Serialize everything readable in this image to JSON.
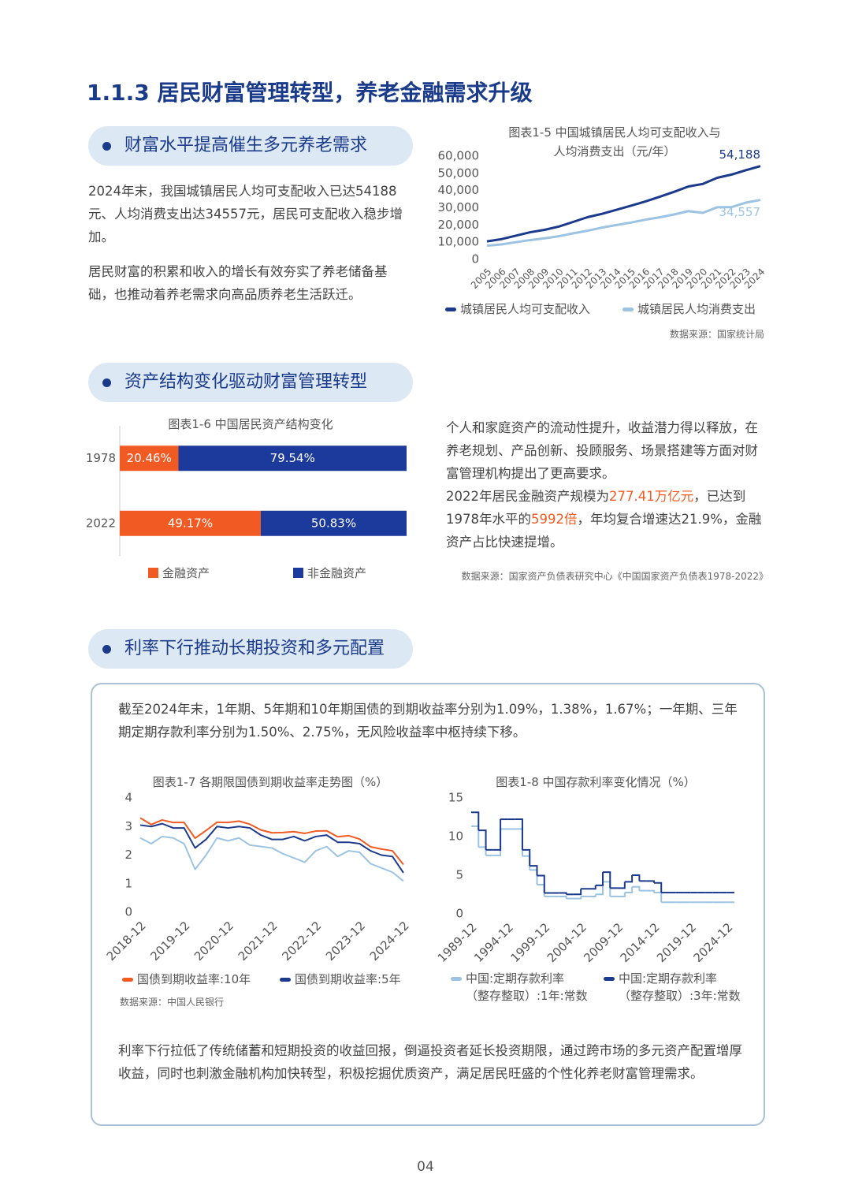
{
  "heading": "1.1.3 居民财富管理转型，养老金融需求升级",
  "sections": [
    {
      "title": "财富水平提高催生多元养老需求",
      "paragraphs": [
        "2024年末，我国城镇居民人均可支配收入已达54188元、人均消费支出达34557元，居民可支配收入稳步增加。",
        "居民财富的积累和收入的增长有效夯实了养老储备基础，也推动着养老需求向高品质养老生活跃迁。"
      ]
    },
    {
      "title": "资产结构变化驱动财富管理转型",
      "paragraphs": [
        "个人和家庭资产的流动性提升，收益潜力得以释放，在养老规划、产品创新、投顾服务、场景搭建等方面对财富管理机构提出了更高要求。"
      ],
      "highlight_paragraph": [
        "2022年居民金融资产规模为",
        "277.41万亿元",
        "，已达到1978年水平的",
        "5992倍",
        "，年均复合增速达21.9%，金融资产占比快速提增。"
      ]
    },
    {
      "title": "利率下行推动长期投资和多元配置",
      "paragraphs": [
        "截至2024年末，1年期、5年期和10年期国债的到期收益率分别为1.09%，1.38%，1.67%；一年期、三年期定期存款利率分别为1.50%、2.75%，无风险收益率中枢持续下移。",
        "利率下行拉低了传统储蓄和短期投资的收益回报，倒逼投资者延长投资期限，通过跨市场的多元资产配置增厚收益，同时也刺激金融机构加快转型，积极挖掘优质资产，满足居民旺盛的个性化养老财富管理需求。"
      ]
    }
  ],
  "chart_data": [
    {
      "type": "line",
      "title": "图表1-5 中国城镇居民人均可支配收入与人均消费支出（元/年）",
      "categories": [
        "2005",
        "2006",
        "2007",
        "2008",
        "2009",
        "2010",
        "2011",
        "2012",
        "2013",
        "2014",
        "2015",
        "2016",
        "2017",
        "2018",
        "2019",
        "2020",
        "2021",
        "2022",
        "2023",
        "2024"
      ],
      "series": [
        {
          "name": "城镇居民人均可支配收入",
          "color": "#1b3a8c",
          "values": [
            10493,
            11759,
            13786,
            15781,
            17175,
            19109,
            21810,
            24565,
            26467,
            28844,
            31195,
            33616,
            36396,
            39251,
            42359,
            43834,
            47412,
            49283,
            51821,
            54188
          ],
          "value_labels": [
            null,
            null,
            null,
            null,
            null,
            null,
            null,
            null,
            null,
            null,
            null,
            null,
            null,
            null,
            null,
            null,
            null,
            null,
            null,
            "54,188"
          ]
        },
        {
          "name": "城镇居民人均消费支出",
          "color": "#9cc3e2",
          "values": [
            7943,
            8697,
            9997,
            11243,
            12265,
            13471,
            15161,
            16674,
            18488,
            19968,
            21392,
            23079,
            24445,
            26112,
            28063,
            27007,
            30307,
            30391,
            32994,
            34557
          ],
          "value_labels": [
            null,
            null,
            null,
            null,
            null,
            null,
            null,
            null,
            null,
            null,
            null,
            null,
            null,
            null,
            null,
            null,
            null,
            null,
            null,
            "34,557"
          ]
        }
      ],
      "ylim": [
        0,
        60000
      ],
      "yticks": [
        0,
        {
          "value": 10000,
          "label": "10,000"
        },
        {
          "value": 20000,
          "label": "20,000"
        },
        {
          "value": 30000,
          "label": "30,000"
        },
        {
          "value": 40000,
          "label": "40,000"
        },
        {
          "value": 50000,
          "label": "50,000"
        },
        {
          "value": 60000,
          "label": "60,000"
        }
      ],
      "source": "数据来源：国家统计局"
    },
    {
      "type": "bar",
      "orientation": "horizontal",
      "stacked": true,
      "title": "图表1-6 中国居民资产结构变化",
      "categories": [
        "1978",
        "2022"
      ],
      "series": [
        {
          "name": "金融资产",
          "color": "#f15a22",
          "values": [
            20.46,
            49.17
          ],
          "value_labels": [
            "20.46%",
            "49.17%"
          ]
        },
        {
          "name": "非金融资产",
          "color": "#1b3a9c",
          "values": [
            79.54,
            50.83
          ],
          "value_labels": [
            "79.54%",
            "50.83%"
          ]
        }
      ],
      "xlim": [
        0,
        100
      ],
      "source": "数据来源：国家资产负债表研究中心《中国国家资产负债表1978-2022》"
    },
    {
      "type": "line",
      "title": "图表1-7 各期限国债到期收益率走势图（%）",
      "categories": [
        "2018-12",
        null,
        null,
        null,
        "2019-12",
        null,
        null,
        null,
        "2020-12",
        null,
        null,
        null,
        "2021-12",
        null,
        null,
        null,
        "2022-12",
        null,
        null,
        null,
        "2023-12",
        null,
        null,
        null,
        "2024-12"
      ],
      "series": [
        {
          "color": "#9cc3e2",
          "values": [
            2.6,
            2.4,
            2.65,
            2.6,
            2.4,
            1.5,
            2.0,
            2.6,
            2.5,
            2.6,
            2.35,
            2.3,
            2.25,
            2.05,
            1.9,
            1.75,
            2.15,
            2.3,
            1.95,
            2.15,
            2.1,
            1.7,
            1.55,
            1.4,
            1.09
          ]
        },
        {
          "name": "国债到期收益率:10年",
          "color": "#f15a22",
          "values": [
            3.3,
            3.07,
            3.23,
            3.14,
            3.14,
            2.59,
            2.86,
            3.15,
            3.14,
            3.19,
            3.08,
            2.88,
            2.78,
            2.79,
            2.82,
            2.76,
            2.84,
            2.85,
            2.64,
            2.68,
            2.56,
            2.29,
            2.21,
            2.15,
            1.67
          ]
        },
        {
          "name": "国债到期收益率:5年",
          "color": "#1b3a8c",
          "values": [
            3.05,
            3.0,
            3.1,
            2.95,
            2.95,
            2.25,
            2.55,
            3.0,
            2.95,
            3.0,
            2.95,
            2.7,
            2.55,
            2.55,
            2.65,
            2.5,
            2.65,
            2.7,
            2.45,
            2.45,
            2.4,
            2.15,
            2.0,
            1.95,
            1.38
          ]
        }
      ],
      "ylim": [
        0,
        4
      ],
      "yticks": [
        0,
        1,
        2,
        3,
        4
      ],
      "source": "数据来源：中国人民银行"
    },
    {
      "type": "line",
      "step": true,
      "title": "图表1-8 中国存款利率变化情况（%）",
      "categories": [
        "1989-12",
        null,
        null,
        null,
        null,
        "1994-12",
        null,
        null,
        null,
        null,
        "1999-12",
        null,
        null,
        null,
        null,
        "2004-12",
        null,
        null,
        null,
        null,
        "2009-12",
        null,
        null,
        null,
        null,
        "2014-12",
        null,
        null,
        null,
        null,
        "2019-12",
        null,
        null,
        null,
        null,
        "2024-12"
      ],
      "series": [
        {
          "name": "中国:定期存款利率（整存整取）:1年:常数",
          "color": "#9cc3e2",
          "values": [
            11.34,
            8.64,
            7.56,
            7.56,
            10.98,
            10.98,
            10.98,
            7.47,
            5.67,
            3.78,
            2.25,
            2.25,
            2.25,
            1.98,
            1.98,
            2.25,
            2.25,
            2.52,
            4.14,
            2.25,
            2.25,
            2.75,
            3.5,
            3.0,
            3.0,
            2.75,
            1.5,
            1.5,
            1.5,
            1.5,
            1.5,
            1.5,
            1.5,
            1.5,
            1.5,
            1.5
          ]
        },
        {
          "name": "中国:定期存款利率（整存整取）:3年:常数",
          "color": "#1b3a8c",
          "values": [
            13.14,
            10.8,
            8.28,
            8.28,
            12.24,
            12.24,
            12.24,
            8.28,
            6.21,
            4.95,
            2.7,
            2.7,
            2.7,
            2.52,
            2.52,
            3.24,
            3.24,
            3.69,
            5.4,
            3.33,
            3.33,
            4.15,
            5.0,
            4.25,
            4.25,
            4.0,
            2.75,
            2.75,
            2.75,
            2.75,
            2.75,
            2.75,
            2.75,
            2.75,
            2.75,
            2.75
          ]
        }
      ],
      "ylim": [
        0,
        15
      ],
      "yticks": [
        0,
        5,
        10,
        15
      ]
    }
  ],
  "page_number": "04"
}
